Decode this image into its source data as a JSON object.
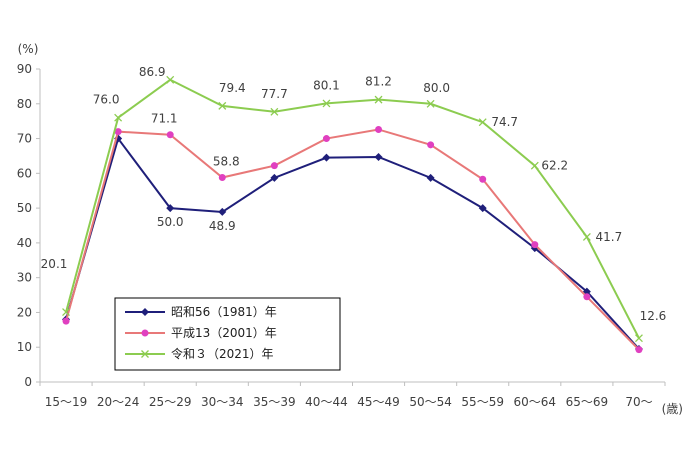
{
  "chart_data": {
    "type": "line",
    "ylabel": "(%)",
    "xlabel": "(歳)",
    "ylim": [
      0,
      90
    ],
    "yticks": [
      0,
      10,
      20,
      30,
      40,
      50,
      60,
      70,
      80,
      90
    ],
    "categories": [
      "15～19",
      "20～24",
      "25～29",
      "30～34",
      "35～39",
      "40～44",
      "45～49",
      "50～54",
      "55～59",
      "60～64",
      "65～69",
      "70～"
    ],
    "grid": false,
    "legend": "bottom-left",
    "series": [
      {
        "name": "昭和56（1981）年",
        "color": "#1f1f7a",
        "marker": "diamond",
        "values": [
          18.0,
          70.0,
          50.0,
          48.9,
          58.7,
          64.5,
          64.7,
          58.7,
          50.0,
          38.5,
          26.0,
          9.5
        ],
        "labels": [
          "",
          "",
          "50.0",
          "48.9",
          "",
          "",
          "",
          "",
          "",
          "",
          "",
          ""
        ]
      },
      {
        "name": "平成13（2001）年",
        "color": "#e87878",
        "marker": "circle",
        "values": [
          17.5,
          72.0,
          71.1,
          58.8,
          62.2,
          70.0,
          72.6,
          68.2,
          58.3,
          39.5,
          24.5,
          9.3
        ],
        "labels": [
          "",
          "",
          "71.1",
          "58.8",
          "",
          "",
          "",
          "",
          "",
          "",
          "",
          ""
        ]
      },
      {
        "name": "令和３（2021）年",
        "color": "#8ccc50",
        "marker": "x",
        "values": [
          20.1,
          76.0,
          86.9,
          79.4,
          77.7,
          80.1,
          81.2,
          80.0,
          74.7,
          62.2,
          41.7,
          12.6
        ],
        "labels": [
          "20.1",
          "76.0",
          "86.9",
          "79.4",
          "77.7",
          "80.1",
          "81.2",
          "80.0",
          "74.7",
          "62.2",
          "41.7",
          "12.6"
        ]
      }
    ]
  }
}
